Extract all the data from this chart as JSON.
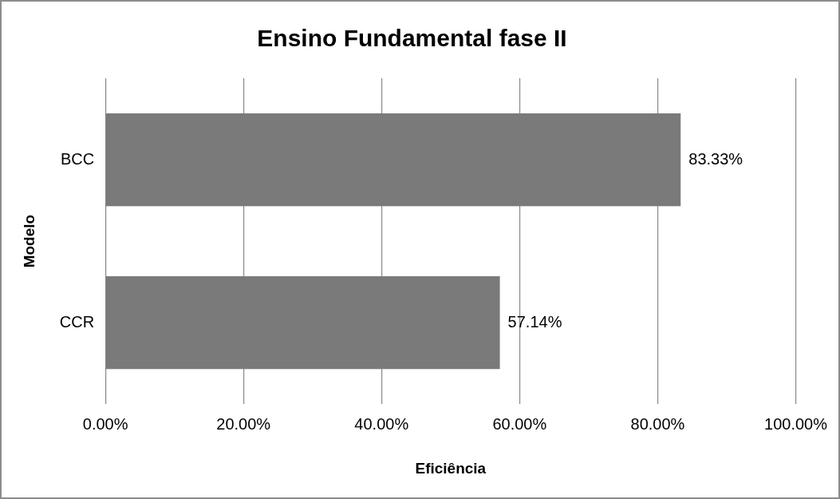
{
  "chart_data": {
    "type": "bar",
    "orientation": "horizontal",
    "title": "Ensino Fundamental fase II",
    "xlabel": "Eficiência",
    "ylabel": "Modelo",
    "categories": [
      "BCC",
      "CCR"
    ],
    "values": [
      83.33,
      57.14
    ],
    "value_labels": [
      "83.33%",
      "57.14%"
    ],
    "color": "#7a7a7a",
    "xlim": [
      0,
      100
    ],
    "xticks": [
      {
        "value": 0,
        "label": "0.00%"
      },
      {
        "value": 20,
        "label": "20.00%"
      },
      {
        "value": 40,
        "label": "40.00%"
      },
      {
        "value": 60,
        "label": "60.00%"
      },
      {
        "value": 80,
        "label": "80.00%"
      },
      {
        "value": 100,
        "label": "100.00%"
      }
    ],
    "grid": "x",
    "legend": false
  }
}
